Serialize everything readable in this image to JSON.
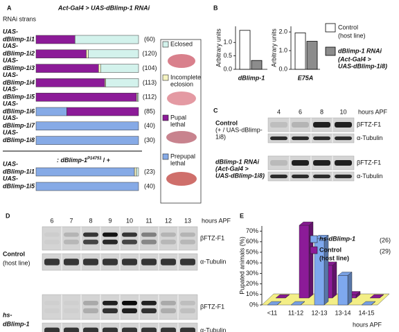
{
  "figure": {
    "A": {
      "label": "A",
      "title": "Act-Gal4 > UAS-dBlimp-1 RNAi",
      "subtitle": "RNAi strans",
      "xlim": [
        0,
        100
      ],
      "legend": [
        {
          "name": [
            "Eclosed"
          ],
          "color": "#d3f2ec"
        },
        {
          "name": [
            "Incomplete",
            "eclosion"
          ],
          "color": "#f6f4c2"
        },
        {
          "name": [
            "Pupal",
            "lethal"
          ],
          "color": "#8c1b98"
        },
        {
          "name": [
            "Prepupal",
            "lethal"
          ],
          "color": "#86aae6"
        }
      ],
      "groups": [
        {
          "rows": [
            {
              "prefix": "UAS-",
              "name": "dBlimp-1i1",
              "n": "(60)",
              "values": [
                62,
                0,
                38,
                0
              ]
            },
            {
              "prefix": "UAS-",
              "name": "dBlimp-1i2",
              "n": "(120)",
              "values": [
                49,
                2,
                49,
                0
              ]
            },
            {
              "prefix": "UAS-",
              "name": "dBlimp-1i3",
              "n": "(104)",
              "values": [
                37,
                2,
                61,
                0
              ]
            },
            {
              "prefix": "UAS-",
              "name": "dBlimp-1i4",
              "n": "(113)",
              "values": [
                32,
                1,
                67,
                0
              ]
            },
            {
              "prefix": "UAS-",
              "name": "dBlimp-1i5",
              "n": "(112)",
              "values": [
                1,
                1,
                98,
                0
              ]
            },
            {
              "prefix": "UAS-",
              "name": "dBlimp-1i6",
              "n": "(85)",
              "values": [
                0,
                0,
                70,
                30
              ]
            },
            {
              "prefix": "UAS-",
              "name": "dBlimp-1i7",
              "n": "(40)",
              "values": [
                0,
                0,
                0,
                100
              ]
            },
            {
              "prefix": "UAS-",
              "name": "dBlimp-1i8",
              "n": "(30)",
              "values": [
                0,
                0,
                0,
                100
              ]
            }
          ]
        },
        {
          "header": {
            "text": ": dBlimp-1",
            "superscript": "P14751",
            "tail": "/ +"
          },
          "rows": [
            {
              "prefix": "UAS-",
              "name": "dBlimp-1i1",
              "n": "(23)",
              "values": [
                2,
                2,
                0,
                96
              ]
            },
            {
              "prefix": "UAS-",
              "name": "dBlimp-1i5",
              "n": "(40)",
              "values": [
                0,
                0,
                0,
                100
              ]
            }
          ]
        }
      ]
    },
    "B": {
      "label": "B",
      "legend": [
        {
          "name": "Control",
          "note": [
            "(host line)"
          ],
          "color": "#ffffff"
        },
        {
          "name": "dBlimp-1 RNAi",
          "note": [
            "(Act-Gal4 >",
            "UAS-dBlimp-1i8)"
          ],
          "color": "#8c8c8c"
        }
      ],
      "charts": [
        {
          "type": "bar",
          "xlabel": "dBlimp-1",
          "ylabel": "Arbitrary units",
          "ylim": [
            0,
            1.6
          ],
          "yticks": [
            {
              "value": 0,
              "label": "0.0"
            },
            {
              "value": 0.5,
              "label": "0.5"
            },
            {
              "value": 1,
              "label": "1.0"
            }
          ],
          "values": [
            1.45,
            0.33
          ]
        },
        {
          "type": "bar",
          "xlabel": "E75A",
          "ylabel": "Arbitrary units",
          "ylim": [
            0,
            2.3
          ],
          "yticks": [
            {
              "value": 0,
              "label": "0.0"
            },
            {
              "value": 1,
              "label": "1.0"
            },
            {
              "value": 2,
              "label": "2.0"
            }
          ],
          "values": [
            1.95,
            1.5
          ]
        }
      ]
    },
    "C": {
      "label": "C",
      "lanes": [
        "4",
        "6",
        "8",
        "10"
      ],
      "unit": "hours APF",
      "blots": [
        {
          "label_lines": [
            "Control",
            "(+ / UAS-dBlimp-",
            "1i8)"
          ],
          "bands": [
            "βFTZ-F1",
            "α-Tubulin"
          ]
        },
        {
          "label_lines": [
            "dBlimp-1 RNAi",
            "(Act-Gal4 >",
            "UAS-dBlimp-1i8)"
          ],
          "bands": [
            "βFTZ-F1",
            "α-Tubulin"
          ]
        }
      ]
    },
    "D": {
      "label": "D",
      "lanes": [
        "6",
        "7",
        "8",
        "9",
        "10",
        "11",
        "12",
        "13"
      ],
      "unit": "hours APF",
      "blots": [
        {
          "label_lines": [
            "Control",
            "(host line)"
          ],
          "bands": [
            "βFTZ-F1",
            "α-Tubulin"
          ]
        },
        {
          "label_lines": [
            "hs-",
            "dBlimp-1"
          ],
          "bands": [
            "βFTZ-F1",
            "α-Tubulin"
          ]
        }
      ]
    },
    "E": {
      "label": "E",
      "type": "bar",
      "ylabel": "Pupated animals (%)",
      "xlabel": "hours APF",
      "ylim": [
        0,
        75
      ],
      "yticks": [
        {
          "value": 0,
          "label": "0%"
        },
        {
          "value": 10,
          "label": "10%"
        },
        {
          "value": 20,
          "label": "20%"
        },
        {
          "value": 30,
          "label": "30%"
        },
        {
          "value": 40,
          "label": "40%"
        },
        {
          "value": 50,
          "label": "50%"
        },
        {
          "value": 60,
          "label": "60%"
        },
        {
          "value": 70,
          "label": "70%"
        }
      ],
      "categories": [
        "<11",
        "11-12",
        "12-13",
        "13-14",
        "14-15"
      ],
      "series": [
        {
          "name": "hs-dBlimp-1",
          "n": "(26)",
          "color": "#7ea8ee",
          "values": [
            0,
            0,
            63,
            28,
            0
          ]
        },
        {
          "name": "Control",
          "note": "(host line)",
          "n": "(29)",
          "color": "#8c1b98",
          "values": [
            0,
            69,
            31,
            3,
            0
          ]
        }
      ]
    }
  }
}
